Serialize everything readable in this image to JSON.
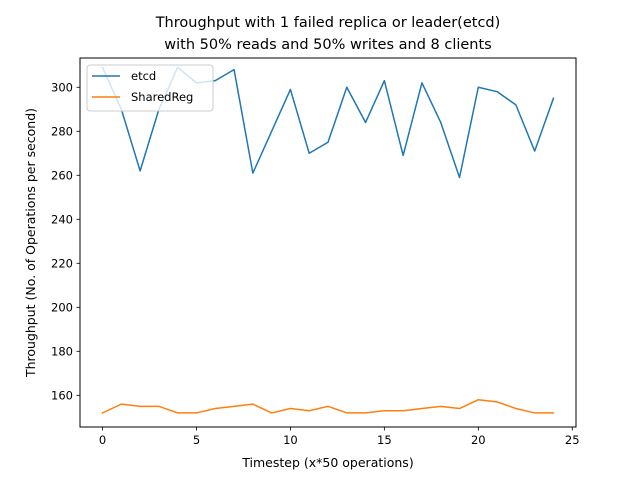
{
  "chart_data": {
    "type": "line",
    "title": "Throughput with 1 failed replica or leader(etcd)",
    "subtitle": "with 50% reads and 50% writes and 8 clients",
    "xlabel": "Timestep (x*50 operations)",
    "ylabel": "Throughput (No. of Operations per second)",
    "x": [
      0,
      1,
      2,
      3,
      4,
      5,
      6,
      7,
      8,
      9,
      10,
      11,
      12,
      13,
      14,
      15,
      16,
      17,
      18,
      19,
      20,
      21,
      22,
      23,
      24
    ],
    "xlim": [
      -1.2,
      25.2
    ],
    "ylim": [
      145.6,
      313.3
    ],
    "xticks": [
      0,
      5,
      10,
      15,
      20,
      25
    ],
    "yticks": [
      160,
      180,
      200,
      220,
      240,
      260,
      280,
      300
    ],
    "grid": false,
    "legend_placement": "top-left",
    "series": [
      {
        "name": "etcd",
        "color": "#1f77b4",
        "values": [
          309,
          290,
          262,
          290,
          309,
          302,
          303,
          308,
          261,
          280,
          299,
          270,
          275,
          300,
          284,
          303,
          269,
          302,
          284,
          259,
          300,
          298,
          292,
          271,
          295
        ]
      },
      {
        "name": "SharedReg",
        "color": "#ff7f0e",
        "values": [
          152,
          156,
          155,
          155,
          152,
          152,
          154,
          155,
          156,
          152,
          154,
          153,
          155,
          152,
          152,
          153,
          153,
          154,
          155,
          154,
          158,
          157,
          154,
          152,
          152
        ]
      }
    ]
  }
}
